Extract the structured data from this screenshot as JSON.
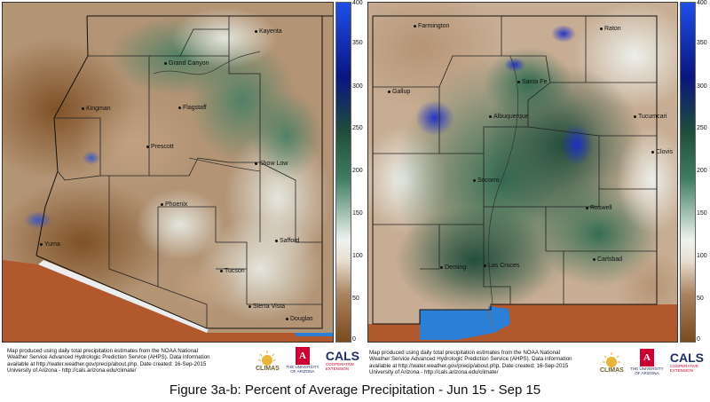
{
  "caption": "Figure 3a-b: Percent of Average Precipitation - Jun 15 - Sep 15",
  "colors": {
    "dry": "#7a4a1e",
    "tan": "#a98360",
    "neutral": "#ffffff",
    "green": "#2e6a4f",
    "darkgreen": "#1f4d3a",
    "blue": "#2f55d8",
    "darkblue": "#0a1580",
    "outside": "#b1582c"
  },
  "scale": {
    "ticks": [
      "400",
      "350",
      "300",
      "250",
      "200",
      "150",
      "100",
      "50",
      "0"
    ]
  },
  "credit": {
    "line1": "Map produced using daily total precipitation estimates from the NOAA National",
    "line2": "Weather Service Advanced Hydrologic Prediction Service (AHPS). Data information",
    "line3": "available at http://water.weather.gov/precip/about.php. Date created: 16-Sep-2015",
    "line4": "University of Arizona - http://cals.arizona.edu/climate/"
  },
  "logos": {
    "climas": "CLIMAS",
    "ua": "THE UNIVERSITY OF ARIZONA",
    "cals": "CALS",
    "cals_sub1": "COOPERATIVE",
    "cals_sub2": "EXTENSION"
  },
  "arizona": {
    "cities": [
      {
        "name": "Kayenta"
      },
      {
        "name": "Grand Canyon"
      },
      {
        "name": "Kingman"
      },
      {
        "name": "Flagstaff"
      },
      {
        "name": "Prescott"
      },
      {
        "name": "Show Low"
      },
      {
        "name": "Phoenix"
      },
      {
        "name": "Yuma"
      },
      {
        "name": "Safford"
      },
      {
        "name": "Tucson"
      },
      {
        "name": "Sierra Vista"
      },
      {
        "name": "Douglas"
      }
    ]
  },
  "new_mexico": {
    "cities": [
      {
        "name": "Farmington"
      },
      {
        "name": "Raton"
      },
      {
        "name": "Gallup"
      },
      {
        "name": "Santa Fe"
      },
      {
        "name": "Albuquerque"
      },
      {
        "name": "Tucumcari"
      },
      {
        "name": "Clovis"
      },
      {
        "name": "Socorro"
      },
      {
        "name": "Roswell"
      },
      {
        "name": "Deming"
      },
      {
        "name": "Las Cruces"
      },
      {
        "name": "Carlsbad"
      }
    ]
  }
}
